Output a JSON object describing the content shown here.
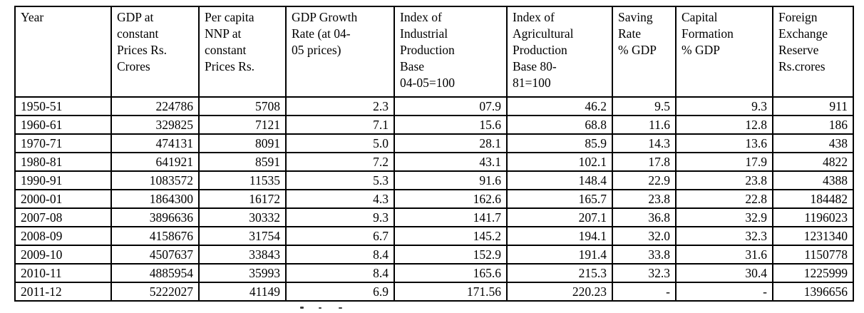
{
  "table": {
    "columns": [
      {
        "id": "year",
        "label": "Year",
        "lines": [
          "Year"
        ]
      },
      {
        "id": "gdp-constant-prices",
        "label": "GDP at constant Prices Rs. Crores",
        "lines": [
          "GDP at",
          "constant",
          "Prices Rs.",
          "Crores"
        ]
      },
      {
        "id": "per-capita-nnp",
        "label": "Per capita NNP at constant Prices Rs.",
        "lines": [
          "Per capita",
          "NNP at",
          "constant",
          "Prices Rs."
        ]
      },
      {
        "id": "gdp-growth-rate",
        "label": "GDP Growth Rate (at 04-05 prices)",
        "lines": [
          "GDP Growth",
          "Rate  (at  04-",
          "05 prices)"
        ]
      },
      {
        "id": "index-industrial-production",
        "label": "Index of Industrial Production Base 04-05=100",
        "lines": [
          "Index of",
          "Industrial",
          "Production",
          "Base",
          "04-05=100"
        ]
      },
      {
        "id": "index-agricultural-production",
        "label": "Index of Agricultural Production Base 80-81=100",
        "lines": [
          "Index of",
          "Agricultural",
          "Production",
          "Base 80-",
          "81=100"
        ]
      },
      {
        "id": "saving-rate",
        "label": "Saving Rate % GDP",
        "lines": [
          "Saving",
          "Rate",
          "% GDP"
        ]
      },
      {
        "id": "capital-formation",
        "label": "Capital Formation % GDP",
        "lines": [
          "Capital",
          "Formation",
          "% GDP"
        ]
      },
      {
        "id": "foreign-exchange-reserve",
        "label": "Foreign Exchange Reserve Rs.crores",
        "lines": [
          "Foreign",
          "Exchange",
          "Reserve",
          "Rs.crores"
        ]
      }
    ],
    "rows": [
      [
        "1950-51",
        "224786",
        "5708",
        "2.3",
        "07.9",
        "46.2",
        "9.5",
        "9.3",
        "911"
      ],
      [
        "1960-61",
        "329825",
        "7121",
        "7.1",
        "15.6",
        "68.8",
        "11.6",
        "12.8",
        "186"
      ],
      [
        "1970-71",
        "474131",
        "8091",
        "5.0",
        "28.1",
        "85.9",
        "14.3",
        "13.6",
        "438"
      ],
      [
        "1980-81",
        "641921",
        "8591",
        "7.2",
        "43.1",
        "102.1",
        "17.8",
        "17.9",
        "4822"
      ],
      [
        "1990-91",
        "1083572",
        "11535",
        "5.3",
        "91.6",
        "148.4",
        "22.9",
        "23.8",
        "4388"
      ],
      [
        "2000-01",
        "1864300",
        "16172",
        "4.3",
        "162.6",
        "165.7",
        "23.8",
        "22.8",
        "184482"
      ],
      [
        "2007-08",
        "3896636",
        "30332",
        "9.3",
        "141.7",
        "207.1",
        "36.8",
        "32.9",
        "1196023"
      ],
      [
        "2008-09",
        "4158676",
        "31754",
        "6.7",
        "145.2",
        "194.1",
        "32.0",
        "32.3",
        "1231340"
      ],
      [
        "2009-10",
        "4507637",
        "33843",
        "8.4",
        "152.9",
        "191.4",
        "33.8",
        "31.6",
        "1150778"
      ],
      [
        "2010-11",
        "4885954",
        "35993",
        "8.4",
        "165.6",
        "215.3",
        "32.3",
        "30.4",
        "1225999"
      ],
      [
        "2011-12",
        "5222027",
        "41149",
        "6.9",
        "171.56",
        "220.23",
        "-",
        "-",
        "1396656"
      ]
    ]
  },
  "colors": {
    "text": "#000000",
    "border": "#000000",
    "background": "#ffffff"
  }
}
